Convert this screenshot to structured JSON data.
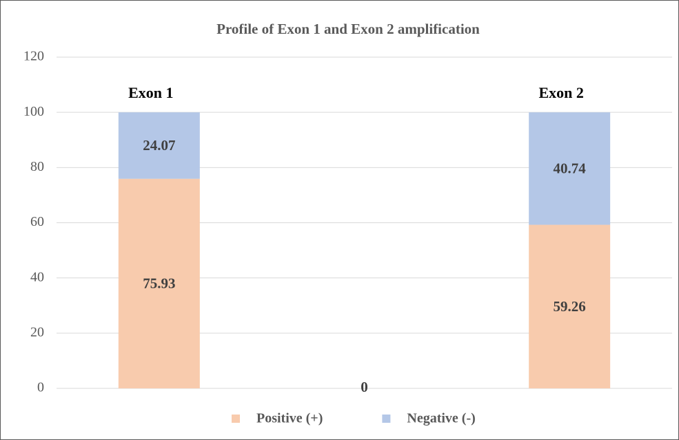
{
  "chart_data": {
    "type": "stacked_bar",
    "title": "Profile of Exon 1 and Exon 2 amplification",
    "categories": [
      "Exon 1",
      null,
      "Exon 2"
    ],
    "series": [
      {
        "name": "Positive (+)",
        "color": "#f8cbad",
        "values": [
          75.93,
          0,
          59.26
        ]
      },
      {
        "name": "Negative (-)",
        "color": "#b4c7e7",
        "values": [
          24.07,
          null,
          40.74
        ]
      }
    ],
    "ylim": [
      0,
      120
    ],
    "yticks": [
      0,
      20,
      40,
      60,
      80,
      100,
      120
    ],
    "grid": true,
    "legend": "bottom"
  }
}
